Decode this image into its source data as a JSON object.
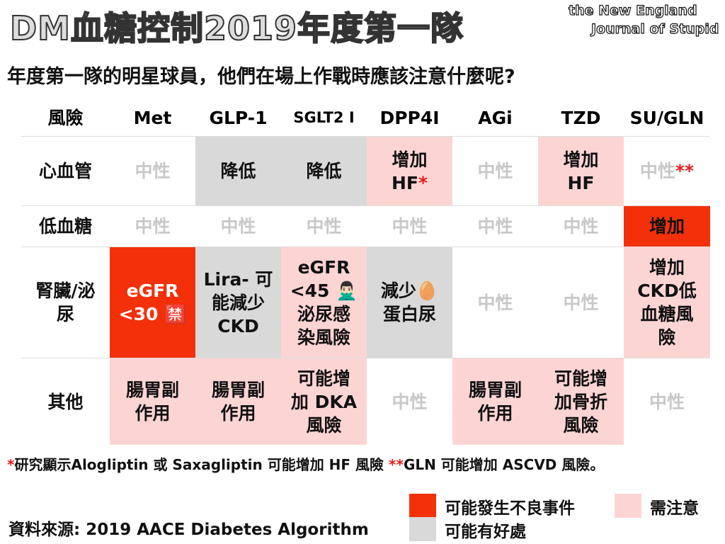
{
  "header": {
    "title": "DM血糖控制2019年度第一隊",
    "brand_line1": "the New England",
    "brand_line2": "Journal of Stupid"
  },
  "subtitle": "年度第一隊的明星球員，他們在場上作戰時應該注意什麼呢?",
  "table": {
    "header": [
      "風險",
      "Met",
      "GLP-1",
      "SGLT2 I",
      "DPP4I",
      "AGi",
      "TZD",
      "SU/GLN"
    ],
    "rows": [
      [
        "心血管",
        "中性",
        "降低",
        "降低",
        "增加\nHF*",
        "中性",
        "增加\nHF",
        "中性**"
      ],
      [
        "低血糖",
        "中性",
        "中性",
        "中性",
        "中性",
        "中性",
        "中性",
        "增加"
      ],
      [
        "腎臟/泌\n尿",
        "eGFR\n<30 🈲",
        "Lira- 可\n能減少\nCKD",
        "eGFR\n<45 🙅🏻‍♂️\n泌尿感\n染風險",
        "減少🥚\n蛋白尿",
        "中性",
        "中性",
        "增加\nCKD低\n血糖風\n險"
      ],
      [
        "其他",
        "腸胃副\n作用",
        "腸胃副\n作用",
        "可能增\n加 DKA\n風險",
        "中性",
        "腸胃副\n作用",
        "可能增\n加骨折\n風險",
        "中性"
      ]
    ],
    "cell_colors": [
      [
        "#ffffff",
        "#ffffff",
        "#d9d9d9",
        "#d9d9d9",
        "#fcd5d3",
        "#ffffff",
        "#fcd5d3",
        "#ffffff"
      ],
      [
        "#ffffff",
        "#ffffff",
        "#ffffff",
        "#ffffff",
        "#ffffff",
        "#ffffff",
        "#ffffff",
        "#f3300a"
      ],
      [
        "#ffffff",
        "#f3300a",
        "#d9d9d9",
        "#fcd5d3",
        "#d9d9d9",
        "#ffffff",
        "#ffffff",
        "#fcd5d3"
      ],
      [
        "#ffffff",
        "#fcd5d3",
        "#fcd5d3",
        "#fcd5d3",
        "#ffffff",
        "#fcd5d3",
        "#fcd5d3",
        "#ffffff"
      ]
    ],
    "text_colors": [
      [
        "#111111",
        "#c8c8c8",
        "#111111",
        "#111111",
        "#111111",
        "#c8c8c8",
        "#111111",
        "#c8c8c8"
      ],
      [
        "#111111",
        "#c8c8c8",
        "#c8c8c8",
        "#c8c8c8",
        "#c8c8c8",
        "#c8c8c8",
        "#c8c8c8",
        "#111111"
      ],
      [
        "#111111",
        "#ffffff",
        "#111111",
        "#111111",
        "#111111",
        "#c8c8c8",
        "#c8c8c8",
        "#111111"
      ],
      [
        "#111111",
        "#111111",
        "#111111",
        "#111111",
        "#c8c8c8",
        "#111111",
        "#111111",
        "#c8c8c8"
      ]
    ]
  },
  "footnote": "*研究顯示Alogliptin 或 Saxagliptin 可能增加 HF 風險 **GLN 可能增加 ASCVD 風險。",
  "source": "資料來源: 2019 AACE Diabetes Algorithm",
  "legend": [
    {
      "label": "可能發生不良事件",
      "color": "#f3300a"
    },
    {
      "label": "需注意",
      "color": "#fcd5d3"
    },
    {
      "label": "可能有好處",
      "color": "#d9d9d9"
    }
  ]
}
